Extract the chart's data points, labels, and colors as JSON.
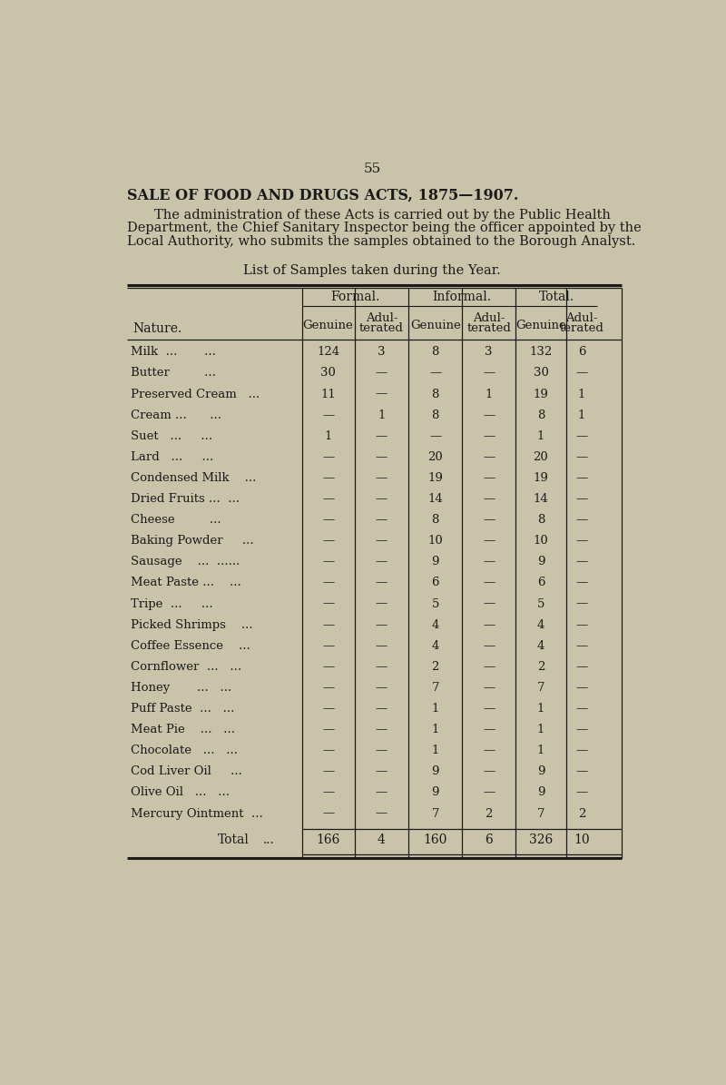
{
  "page_number": "55",
  "title_bold": "SALE OF FOOD AND DRUGS ACTS, 1875—1907.",
  "para_lines": [
    "The administration of these Acts is carried out by the Public Health",
    "Department, the Chief Sanitary Inspector being the officer appointed by the",
    "Local Authority, who submits the samples obtained to the Borough Analyst."
  ],
  "table_title": "List of Samples taken during the Year.",
  "rows": [
    {
      "name": "Milk  ...       ...",
      "fg": "124",
      "fa": "3",
      "ig": "8",
      "ia": "3",
      "tg": "132",
      "ta": "6"
    },
    {
      "name": "Butter         ...",
      "fg": "30",
      "fa": "—",
      "ig": "—",
      "ia": "—",
      "tg": "30",
      "ta": "—"
    },
    {
      "name": "Preserved Cream   ...",
      "fg": "11",
      "fa": "—",
      "ig": "8",
      "ia": "1",
      "tg": "19",
      "ta": "1"
    },
    {
      "name": "Cream ...      ...",
      "fg": "—",
      "fa": "1",
      "ig": "8",
      "ia": "—",
      "tg": "8",
      "ta": "1"
    },
    {
      "name": "Suet   ...     ...",
      "fg": "1",
      "fa": "—",
      "ig": "—",
      "ia": "—",
      "tg": "1",
      "ta": "—"
    },
    {
      "name": "Lard   ...     ...",
      "fg": "—",
      "fa": "—",
      "ig": "20",
      "ia": "—",
      "tg": "20",
      "ta": "—"
    },
    {
      "name": "Condensed Milk    ...",
      "fg": "—",
      "fa": "—",
      "ig": "19",
      "ia": "—",
      "tg": "19",
      "ta": "—"
    },
    {
      "name": "Dried Fruits ...  ...",
      "fg": "—",
      "fa": "—",
      "ig": "14",
      "ia": "—",
      "tg": "14",
      "ta": "—"
    },
    {
      "name": "Cheese         ...",
      "fg": "—",
      "fa": "—",
      "ig": "8",
      "ia": "—",
      "tg": "8",
      "ta": "—"
    },
    {
      "name": "Baking Powder     ...",
      "fg": "—",
      "fa": "—",
      "ig": "10",
      "ia": "—",
      "tg": "10",
      "ta": "—"
    },
    {
      "name": "Sausage    ...  ......",
      "fg": "—",
      "fa": "—",
      "ig": "9",
      "ia": "—",
      "tg": "9",
      "ta": "—"
    },
    {
      "name": "Meat Paste ...    ...",
      "fg": "—",
      "fa": "—",
      "ig": "6",
      "ia": "—",
      "tg": "6",
      "ta": "—"
    },
    {
      "name": "Tripe  ...     ...",
      "fg": "—",
      "fa": "—",
      "ig": "5",
      "ia": "—",
      "tg": "5",
      "ta": "—"
    },
    {
      "name": "Picked Shrimps    ...",
      "fg": "—",
      "fa": "—",
      "ig": "4",
      "ia": "—",
      "tg": "4",
      "ta": "—"
    },
    {
      "name": "Coffee Essence    ...",
      "fg": "—",
      "fa": "—",
      "ig": "4",
      "ia": "—",
      "tg": "4",
      "ta": "—"
    },
    {
      "name": "Cornflower  ...   ...",
      "fg": "—",
      "fa": "—",
      "ig": "2",
      "ia": "—",
      "tg": "2",
      "ta": "—"
    },
    {
      "name": "Honey       ...   ...",
      "fg": "—",
      "fa": "—",
      "ig": "7",
      "ia": "—",
      "tg": "7",
      "ta": "—"
    },
    {
      "name": "Puff Paste  ...   ...",
      "fg": "—",
      "fa": "—",
      "ig": "1",
      "ia": "—",
      "tg": "1",
      "ta": "—"
    },
    {
      "name": "Meat Pie    ...   ...",
      "fg": "—",
      "fa": "—",
      "ig": "1",
      "ia": "—",
      "tg": "1",
      "ta": "—"
    },
    {
      "name": "Chocolate   ...   ...",
      "fg": "—",
      "fa": "—",
      "ig": "1",
      "ia": "—",
      "tg": "1",
      "ta": "—"
    },
    {
      "name": "Cod Liver Oil     ...",
      "fg": "—",
      "fa": "—",
      "ig": "9",
      "ia": "—",
      "tg": "9",
      "ta": "—"
    },
    {
      "name": "Olive Oil   ...   ...",
      "fg": "—",
      "fa": "—",
      "ig": "9",
      "ia": "—",
      "tg": "9",
      "ta": "—"
    },
    {
      "name": "Mercury Ointment  ...",
      "fg": "—",
      "fa": "—",
      "ig": "7",
      "ia": "2",
      "tg": "7",
      "ta": "2"
    }
  ],
  "total_row": {
    "fg": "166",
    "fa": "4",
    "ig": "160",
    "ia": "6",
    "tg": "326",
    "ta": "10"
  },
  "bg_color": "#c9c4a9",
  "text_color": "#1a1a1a",
  "line_color": "#1a1a1a"
}
